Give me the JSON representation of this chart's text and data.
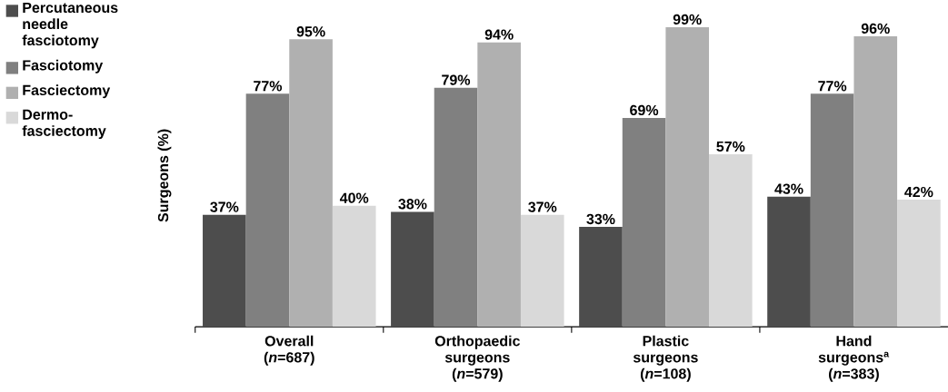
{
  "chart_data": {
    "type": "bar",
    "ylabel": "Surgeons (%)",
    "categories": [
      "Overall (*n*=687)",
      "Orthopaedic surgeons (*n*=579)",
      "Plastic surgeons (*n*=108)",
      "Hand surgeons$^{a}$ (*n*=383)"
    ],
    "ylim": [
      0,
      100
    ],
    "legend": "left",
    "series": [
      {
        "name": "Percutaneous needle fasciotomy",
        "color": "#4d4d4d",
        "values": [
          37,
          38,
          33,
          43
        ],
        "value_labels": [
          "37%",
          "38%",
          "33%",
          "43%"
        ]
      },
      {
        "name": "Fasciotomy",
        "color": "#808080",
        "values": [
          77,
          79,
          69,
          77
        ],
        "value_labels": [
          "77%",
          "79%",
          "69%",
          "77%"
        ]
      },
      {
        "name": "Fasciectomy",
        "color": "#b0b0b0",
        "values": [
          95,
          94,
          99,
          96
        ],
        "value_labels": [
          "95%",
          "94%",
          "99%",
          "96%"
        ]
      },
      {
        "name": "Dermo-fasciectomy",
        "color": "#d9d9d9",
        "values": [
          40,
          37,
          57,
          42
        ],
        "value_labels": [
          "40%",
          "37%",
          "57%",
          "42%"
        ]
      }
    ]
  }
}
